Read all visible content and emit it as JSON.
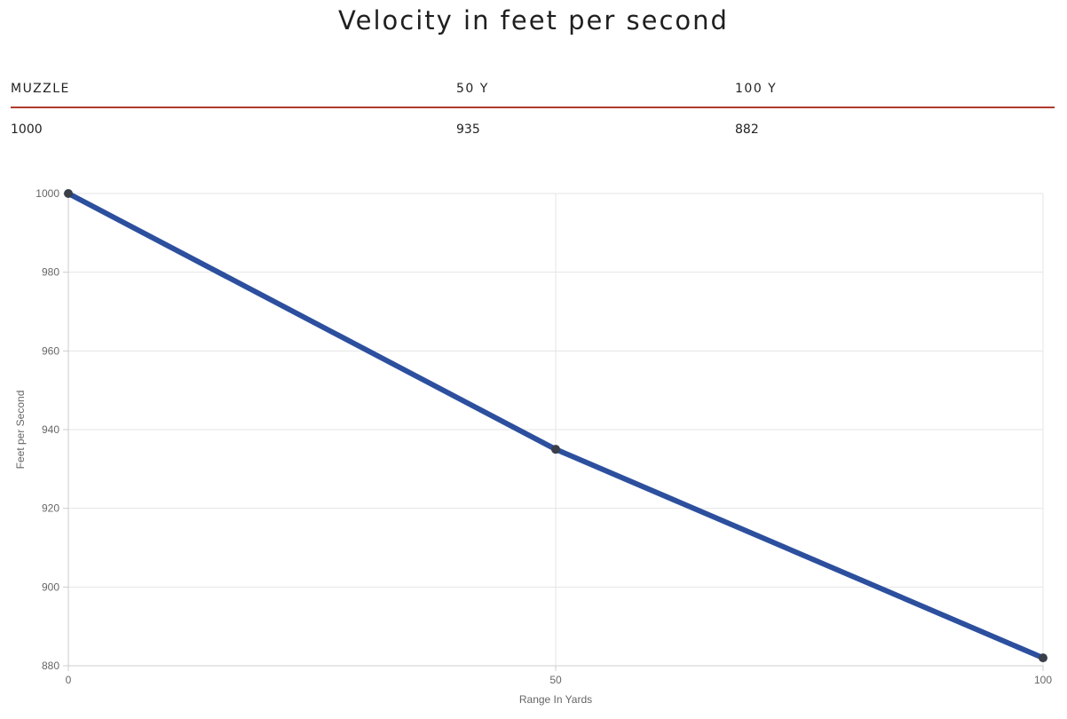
{
  "page": {
    "title": "Velocity in feet per second"
  },
  "table": {
    "headers": [
      "MUZZLE",
      "50 Y",
      "100 Y"
    ],
    "values": [
      "1000",
      "935",
      "882"
    ]
  },
  "chart_data": {
    "type": "line",
    "title": "",
    "xlabel": "Range In Yards",
    "ylabel": "Feet per Second",
    "x": [
      0,
      50,
      100
    ],
    "series": [
      {
        "values": [
          1000,
          935,
          882
        ]
      }
    ],
    "xlim": [
      0,
      100
    ],
    "ylim": [
      880,
      1000
    ],
    "xticks": [
      0,
      50,
      100
    ],
    "yticks": [
      880,
      900,
      920,
      940,
      960,
      980,
      1000
    ],
    "grid": true,
    "legend": "none",
    "colors": {
      "line": "#2c4f9e",
      "point": "#3a3f4a",
      "grid": "#e5e5e5",
      "axis": "#cccccc",
      "tick_text": "#666666",
      "header_rule": "#b03a2e"
    }
  }
}
